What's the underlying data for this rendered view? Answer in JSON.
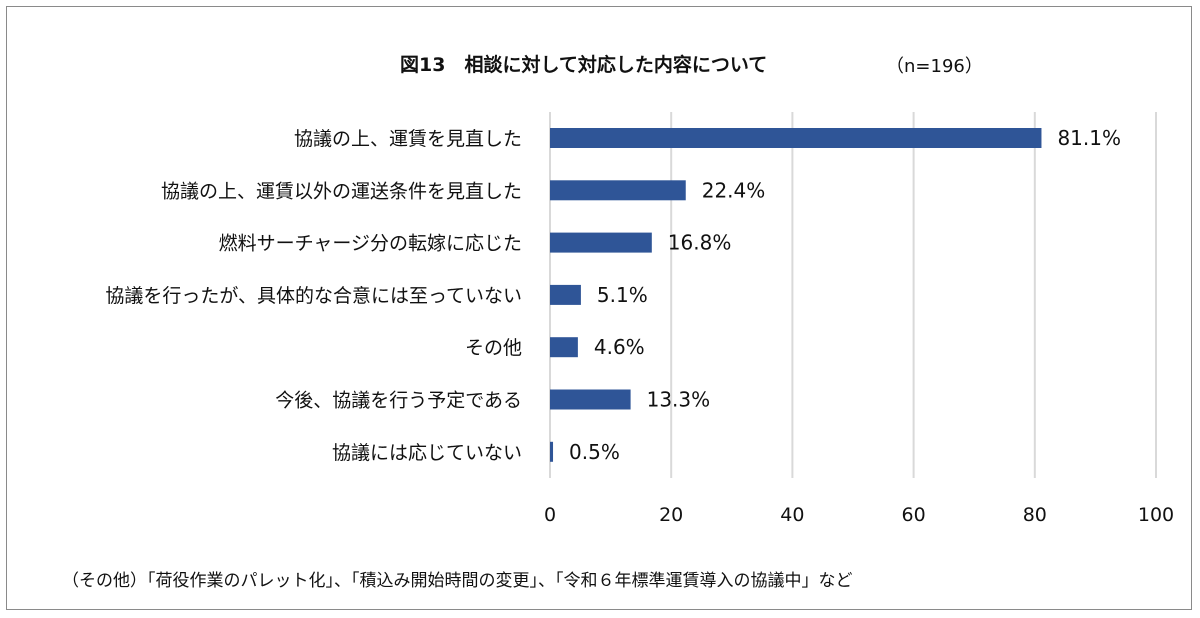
{
  "chart_data": {
    "type": "bar",
    "orientation": "horizontal",
    "title": "図13　相談に対して対応した内容について",
    "sample_size": "（n=196）",
    "categories": [
      "協議の上、運賃を見直した",
      "協議の上、運賃以外の運送条件を見直した",
      "燃料サーチャージ分の転嫁に応じた",
      "協議を行ったが、具体的な合意には至っていない",
      "その他",
      "今後、協議を行う予定である",
      "協議には応じていない"
    ],
    "values": [
      81.1,
      22.4,
      16.8,
      5.1,
      4.6,
      13.3,
      0.5
    ],
    "value_labels": [
      "81.1%",
      "22.4%",
      "16.8%",
      "5.1%",
      "4.6%",
      "13.3%",
      "0.5%"
    ],
    "xlim": [
      0,
      100
    ],
    "xticks": [
      0,
      20,
      40,
      60,
      80,
      100
    ],
    "xtick_labels": [
      "0",
      "20",
      "40",
      "60",
      "80",
      "100"
    ],
    "grid": "vertical",
    "bar_color": "#2f5597",
    "grid_color": "#d9d9d9",
    "footnote": "（その他）「荷役作業のパレット化」、「積込み開始時間の変更」、「令和６年標準運賃導入の協議中」など"
  }
}
